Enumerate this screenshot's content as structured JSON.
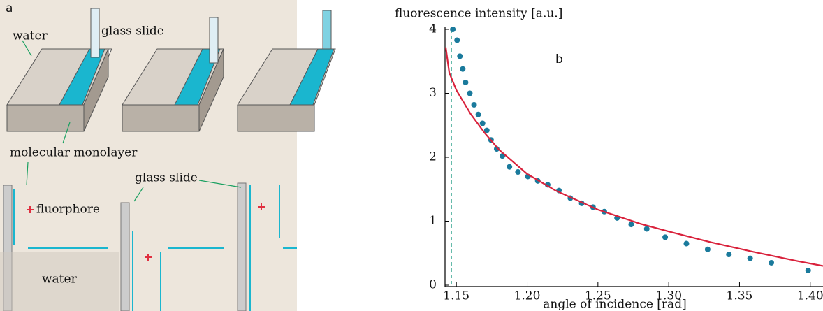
{
  "panel_a": {
    "label": "a",
    "water_top": "water",
    "glass_slide_top": "glass slide",
    "monolayer": "molecular monolayer",
    "fluorophore": "fluorphore",
    "glass_slide_bottom": "glass slide",
    "water_bottom": "water"
  },
  "chart_data": {
    "type": "scatter",
    "panel_label": "b",
    "y_label": "fluorescence intensity [a.u.]",
    "x_label": "angle of incidence [rad]",
    "xlim": [
      1.142,
      1.409
    ],
    "ylim": [
      0,
      4
    ],
    "xticks": [
      1.15,
      {
        "value": 1.2,
        "label": "1.20"
      },
      1.25,
      {
        "value": 1.3,
        "label": "1.30"
      },
      1.35,
      {
        "value": 1.4,
        "label": "1.40"
      }
    ],
    "yticks": [
      0,
      1,
      2,
      3,
      4
    ],
    "vline": 1.1465,
    "vline_color": "#2aa08a",
    "series": [
      {
        "type": "scatter",
        "color": "#1a7a9c",
        "x": [
          1.1475,
          1.1505,
          1.1525,
          1.1545,
          1.1565,
          1.1595,
          1.1625,
          1.1655,
          1.1685,
          1.1715,
          1.1745,
          1.1785,
          1.1825,
          1.1875,
          1.1935,
          1.2005,
          1.2075,
          1.2145,
          1.2225,
          1.2305,
          1.2385,
          1.2465,
          1.2545,
          1.2635,
          1.2735,
          1.2845,
          1.2975,
          1.3125,
          1.3275,
          1.3425,
          1.3575,
          1.3725,
          1.3985
        ],
        "values": [
          4.0,
          3.83,
          3.58,
          3.38,
          3.17,
          3.0,
          2.82,
          2.67,
          2.53,
          2.42,
          2.27,
          2.13,
          2.02,
          1.85,
          1.77,
          1.7,
          1.63,
          1.57,
          1.48,
          1.36,
          1.28,
          1.22,
          1.15,
          1.05,
          0.95,
          0.88,
          0.75,
          0.65,
          0.56,
          0.48,
          0.42,
          0.35,
          0.23
        ]
      },
      {
        "type": "line",
        "color": "#d9213b",
        "x": [
          1.1425,
          1.145,
          1.15,
          1.16,
          1.17,
          1.18,
          1.2,
          1.22,
          1.25,
          1.28,
          1.3,
          1.33,
          1.36,
          1.39,
          1.409
        ],
        "values": [
          3.72,
          3.32,
          3.05,
          2.68,
          2.38,
          2.12,
          1.74,
          1.48,
          1.18,
          0.96,
          0.84,
          0.67,
          0.52,
          0.38,
          0.3
        ]
      }
    ]
  }
}
